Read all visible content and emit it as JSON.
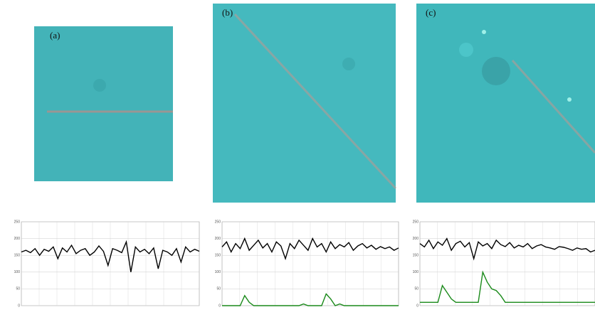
{
  "panels": [
    {
      "label": "(a)"
    },
    {
      "label": "(b)"
    },
    {
      "label": "(c)"
    }
  ],
  "chart_data": [
    {
      "type": "line",
      "ylim": [
        0,
        250
      ],
      "yticks": [
        0,
        50,
        100,
        150,
        200,
        250
      ],
      "grid": true,
      "series": [
        {
          "color": "#000000",
          "values": [
            160,
            165,
            158,
            170,
            150,
            168,
            162,
            175,
            140,
            172,
            160,
            180,
            155,
            165,
            170,
            150,
            160,
            178,
            162,
            120,
            170,
            165,
            158,
            190,
            100,
            175,
            160,
            168,
            155,
            172,
            110,
            165,
            160,
            150,
            170,
            130,
            175,
            160,
            168,
            162
          ]
        }
      ]
    },
    {
      "type": "line",
      "ylim": [
        0,
        250
      ],
      "yticks": [
        0,
        50,
        100,
        150,
        200,
        250
      ],
      "grid": true,
      "series": [
        {
          "color": "#000000",
          "values": [
            175,
            190,
            160,
            185,
            170,
            200,
            165,
            180,
            195,
            172,
            185,
            160,
            190,
            178,
            140,
            185,
            170,
            195,
            180,
            165,
            200,
            175,
            185,
            160,
            190,
            170,
            182,
            175,
            188,
            165,
            178,
            185,
            172,
            180,
            168,
            176,
            170,
            175,
            165,
            172
          ]
        },
        {
          "color": "#1a8a1a",
          "values": [
            0,
            0,
            0,
            0,
            0,
            30,
            10,
            0,
            0,
            0,
            0,
            0,
            0,
            0,
            0,
            0,
            0,
            0,
            5,
            0,
            0,
            0,
            0,
            35,
            20,
            0,
            5,
            0,
            0,
            0,
            0,
            0,
            0,
            0,
            0,
            0,
            0,
            0,
            0,
            0
          ]
        }
      ]
    },
    {
      "type": "line",
      "ylim": [
        0,
        250
      ],
      "yticks": [
        0,
        50,
        100,
        150,
        200,
        250
      ],
      "grid": true,
      "series": [
        {
          "color": "#000000",
          "values": [
            185,
            175,
            195,
            170,
            190,
            180,
            200,
            165,
            185,
            192,
            175,
            188,
            140,
            190,
            178,
            185,
            170,
            195,
            182,
            176,
            188,
            172,
            180,
            175,
            185,
            170,
            178,
            182,
            175,
            172,
            168,
            176,
            174,
            170,
            165,
            172,
            168,
            170,
            160,
            165
          ]
        },
        {
          "color": "#1a8a1a",
          "values": [
            10,
            10,
            10,
            10,
            10,
            60,
            40,
            20,
            10,
            10,
            10,
            10,
            10,
            10,
            100,
            70,
            50,
            45,
            30,
            10,
            10,
            10,
            10,
            10,
            10,
            10,
            10,
            10,
            10,
            10,
            10,
            10,
            10,
            10,
            10,
            10,
            10,
            10,
            10,
            10
          ]
        }
      ]
    }
  ]
}
